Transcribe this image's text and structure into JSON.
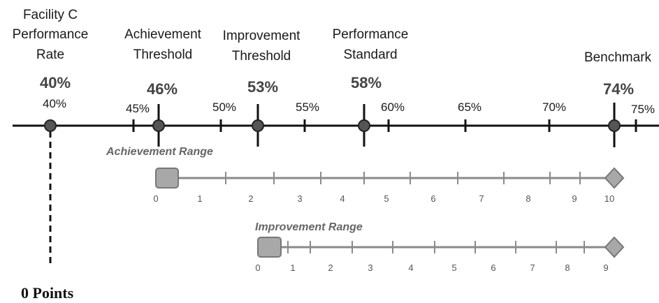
{
  "scale": {
    "ticks": [
      "45%",
      "50%",
      "55%",
      "60%",
      "65%",
      "70%",
      "75%"
    ],
    "tick_values": [
      45,
      50,
      55,
      60,
      65,
      70,
      75
    ]
  },
  "markers": [
    {
      "id": "facility",
      "heading": [
        "Facility C",
        "Performance",
        "Rate"
      ],
      "big_value": "40%",
      "small_value": "40%",
      "value": 40
    },
    {
      "id": "achievement",
      "heading": [
        "Achievement",
        "Threshold"
      ],
      "big_value": "46%",
      "value": 46
    },
    {
      "id": "improvement",
      "heading": [
        "Improvement",
        "Threshold"
      ],
      "big_value": "53%",
      "value": 53
    },
    {
      "id": "standard",
      "heading": [
        "Performance",
        "Standard"
      ],
      "big_value": "58%",
      "value": 58
    },
    {
      "id": "benchmark",
      "heading": [
        "Benchmark"
      ],
      "big_value": "74%",
      "value": 74
    }
  ],
  "achievement_range": {
    "label": "Achievement Range",
    "numbers": [
      "0",
      "1",
      "2",
      "3",
      "4",
      "5",
      "6",
      "7",
      "8",
      "9",
      "10"
    ]
  },
  "improvement_range": {
    "label": "Improvement Range",
    "numbers": [
      "0",
      "1",
      "2",
      "3",
      "4",
      "5",
      "6",
      "7",
      "8",
      "9"
    ]
  },
  "result": {
    "label": "0 Points"
  },
  "colors": {
    "line": "#111111",
    "marker": "#555555",
    "range_line": "#8a8a8a",
    "square": "#a8a8a8",
    "diamond": "#a8a8a8"
  }
}
